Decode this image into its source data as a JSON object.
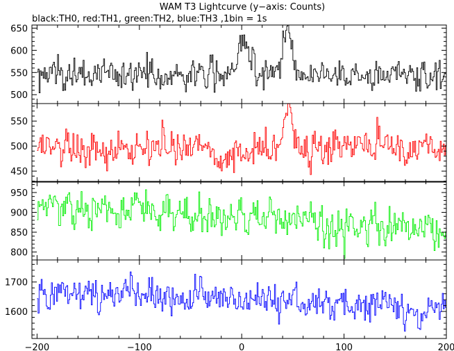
{
  "chart_data": {
    "type": "line",
    "title": "WAM T3 Lightcurve (y−axis: Counts)",
    "subtitle": "black:TH0, red:TH1, green:TH2, blue:TH3 ,1bin = 1s",
    "xlim": [
      -205,
      200
    ],
    "x_ticks": [
      -200,
      -100,
      0,
      100,
      200
    ],
    "x_step": 1,
    "grid": false,
    "panels": [
      {
        "name": "TH0",
        "color": "#000000",
        "ylim": [
          480,
          657
        ],
        "y_ticks": [
          500,
          550,
          600,
          650
        ],
        "baseline": 545,
        "noise": 22,
        "bursts": [
          {
            "center": 0,
            "width": 4,
            "amp": 85
          },
          {
            "center": 10,
            "width": 8,
            "amp": 25
          },
          {
            "center": 44,
            "width": 5,
            "amp": 95
          }
        ]
      },
      {
        "name": "TH1",
        "color": "#ff0000",
        "ylim": [
          428,
          585
        ],
        "y_ticks": [
          450,
          500,
          550
        ],
        "baseline": 497,
        "noise": 22,
        "bursts": [
          {
            "center": 45,
            "width": 4,
            "amp": 80
          }
        ]
      },
      {
        "name": "TH2",
        "color": "#00ee00",
        "ylim": [
          780,
          978
        ],
        "y_ticks": [
          800,
          850,
          900,
          950
        ],
        "baseline_start": 915,
        "baseline_end": 855,
        "noise": 28,
        "bursts": []
      },
      {
        "name": "TH3",
        "color": "#0000ff",
        "ylim": [
          1508,
          1775
        ],
        "y_ticks": [
          1600,
          1700
        ],
        "baseline_start": 1680,
        "baseline_end": 1605,
        "noise": 35,
        "bursts": []
      }
    ]
  }
}
